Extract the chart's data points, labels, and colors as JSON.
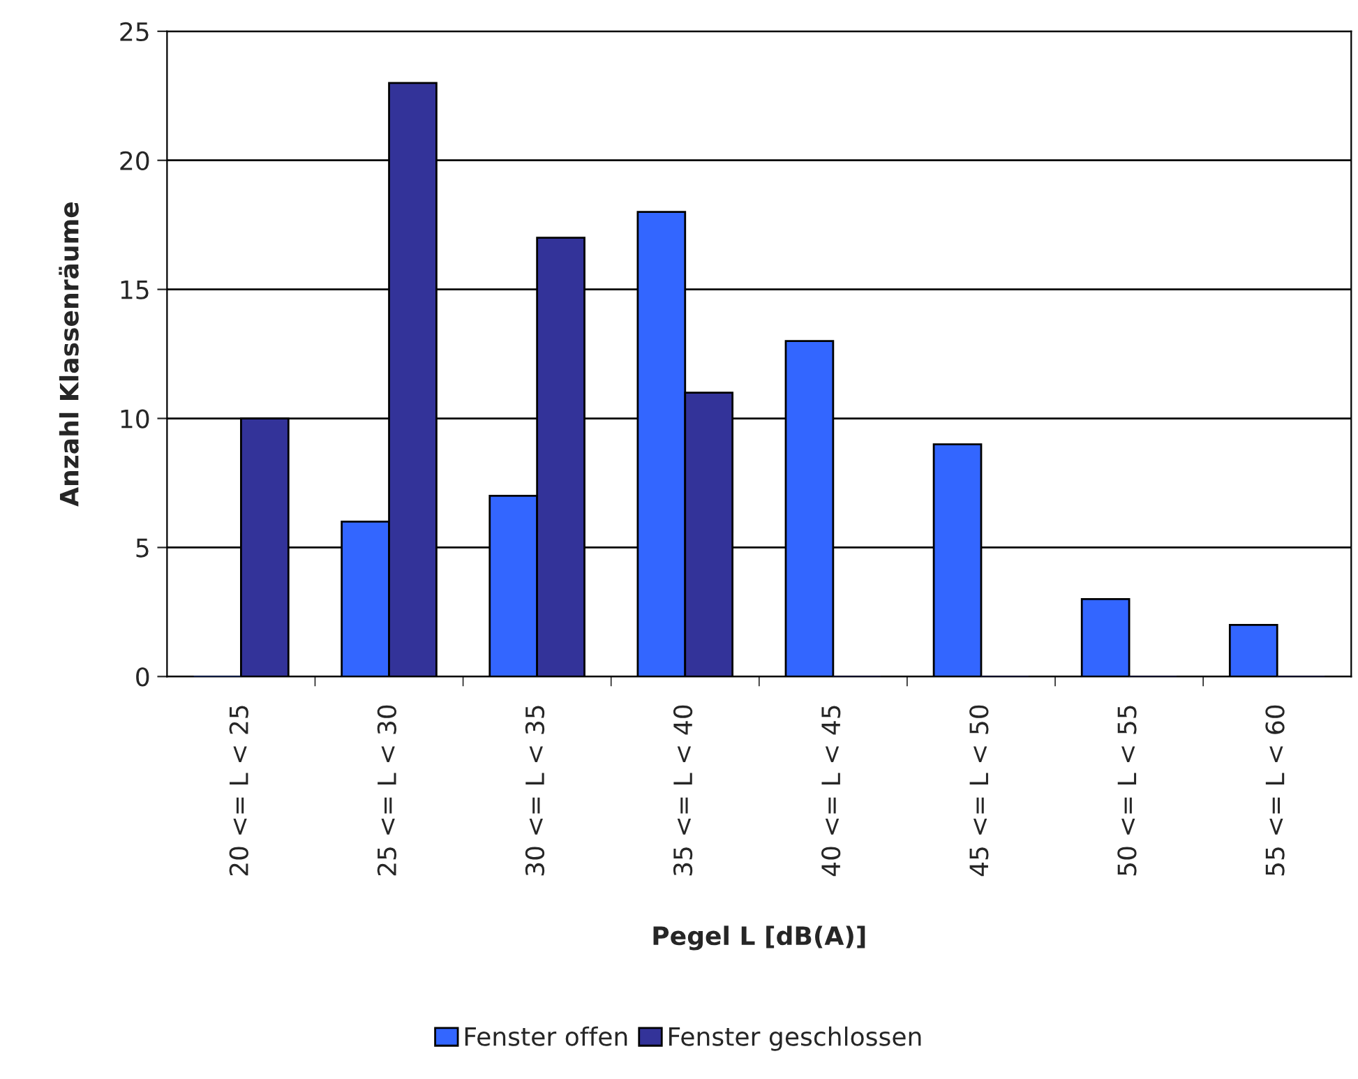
{
  "chart_data": {
    "type": "bar",
    "xlabel": "Pegel L [dB(A)]",
    "ylabel": "Anzahl Klassenräume",
    "categories": [
      "20 <= L < 25",
      "25 <= L < 30",
      "30 <= L < 35",
      "35 <= L < 40",
      "40 <= L < 45",
      "45 <= L < 50",
      "50 <= L < 55",
      "55 <= L < 60"
    ],
    "series": [
      {
        "name": "Fenster offen",
        "color": "#3366ff",
        "values": [
          0,
          6,
          7,
          18,
          13,
          9,
          3,
          2
        ]
      },
      {
        "name": "Fenster geschlossen",
        "color": "#333399",
        "values": [
          10,
          23,
          17,
          11,
          0,
          0,
          0,
          0
        ]
      }
    ],
    "ylim": [
      0,
      25
    ],
    "yticks": [
      0,
      5,
      10,
      15,
      20,
      25
    ],
    "grid": "y",
    "legend": "bottom"
  }
}
